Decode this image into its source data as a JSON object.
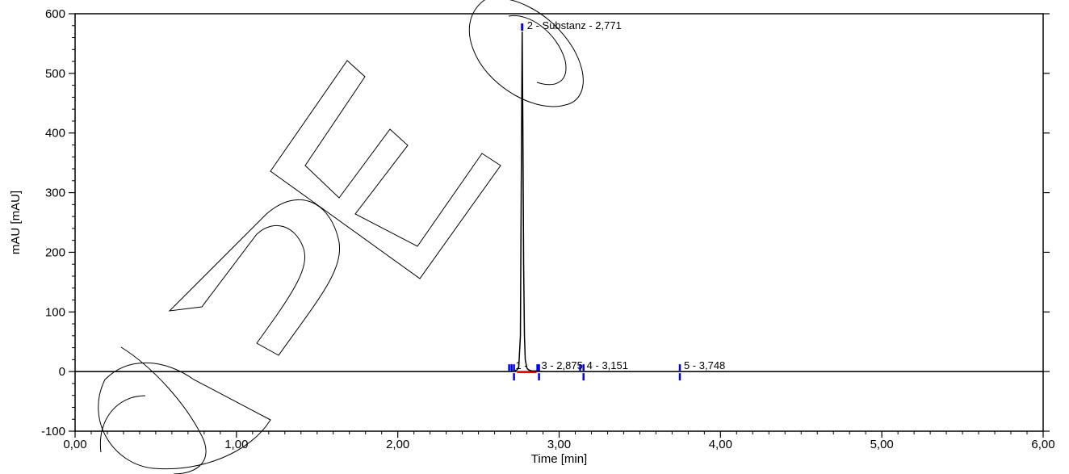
{
  "chart_data": {
    "type": "line",
    "xlabel": "Time [min]",
    "ylabel": "mAU [mAU]",
    "xlim": [
      0,
      6
    ],
    "ylim": [
      -100,
      600
    ],
    "x_ticks": [
      0,
      1,
      2,
      3,
      4,
      5,
      6
    ],
    "x_tick_labels": [
      "0,00",
      "1,00",
      "2,00",
      "3,00",
      "4,00",
      "5,00",
      "6,00"
    ],
    "y_ticks": [
      -100,
      0,
      100,
      200,
      300,
      400,
      500,
      600
    ],
    "y_tick_labels": [
      "-100",
      "0",
      "100",
      "200",
      "300",
      "400",
      "500",
      "600"
    ],
    "grid": false,
    "series": [
      {
        "x": [
          0.0,
          0.5,
          1.0,
          1.5,
          2.0,
          2.5,
          2.7,
          2.72,
          2.74,
          2.75,
          2.76,
          2.765,
          2.771,
          2.775,
          2.78,
          2.785,
          2.79,
          2.8,
          2.81,
          2.83,
          2.86,
          2.9,
          3.0,
          3.151,
          3.5,
          3.748,
          4.0,
          4.5,
          5.0,
          5.5,
          6.0
        ],
        "values": [
          0,
          0,
          0,
          0,
          0,
          0,
          0,
          1,
          3,
          8,
          60,
          300,
          570,
          420,
          180,
          60,
          20,
          6,
          3,
          1,
          1,
          0,
          0,
          0,
          0,
          0,
          0,
          0,
          0,
          0,
          0
        ]
      }
    ],
    "peaks": [
      {
        "label": "2 - Substanz - 2,771",
        "time": 2.771
      },
      {
        "label": "1 -",
        "time": 2.72
      },
      {
        "label": "3 - 2,875",
        "time": 2.875
      },
      {
        "label": "4 - 3,151",
        "time": 3.151
      },
      {
        "label": "5 - 3,748",
        "time": 3.748
      }
    ],
    "colors": {
      "trace": "#000000",
      "marker": "#0000ff",
      "baseline": "#ff0000"
    }
  }
}
